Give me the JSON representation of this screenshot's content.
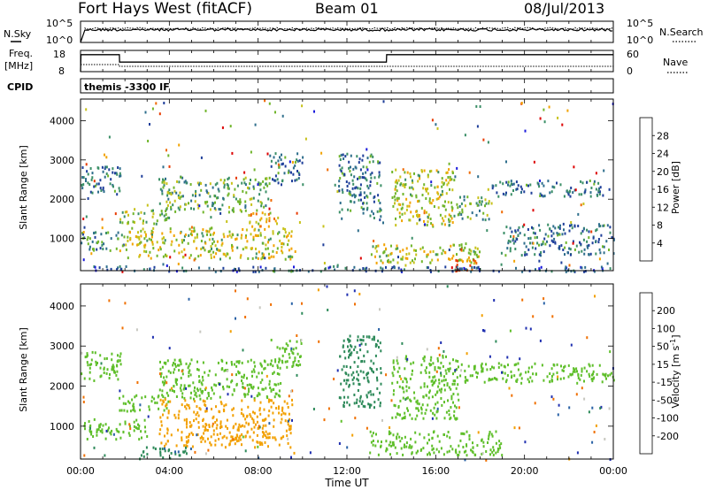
{
  "header": {
    "station": "Fort Hays West (fitACF)",
    "beam": "Beam 01",
    "date": "08/Jul/2013"
  },
  "top_panels": {
    "nsky_label": "N.Sky",
    "nsky_ticks": [
      "10^5",
      "10^0"
    ],
    "nsearch_label": "N.Search",
    "nsearch_ticks": [
      "10^5",
      "10^0"
    ],
    "freq_label": "Freq.",
    "freq_unit": "[MHz]",
    "freq_ticks": [
      "18",
      "8"
    ],
    "nave_label": "Nave",
    "nave_ticks": [
      "60",
      "0"
    ],
    "cpid_label": "CPID",
    "cpid_value": "themis -3300 IF"
  },
  "axes": {
    "xlabel": "Time UT",
    "x_ticks": [
      "00:00",
      "04:00",
      "08:00",
      "12:00",
      "16:00",
      "20:00",
      "00:00"
    ],
    "ylabel": "Slant Range [km]",
    "y_ticks": [
      "1000",
      "2000",
      "3000",
      "4000"
    ]
  },
  "colorbars": {
    "power": {
      "label": "Power [dB]",
      "ticks": [
        "4",
        "8",
        "12",
        "16",
        "20",
        "24",
        "28"
      ],
      "colors": [
        "#1a1adc",
        "#1f3f9a",
        "#2e6e8c",
        "#3b8f67",
        "#70b52b",
        "#c7c21b",
        "#f2a300",
        "#f06a00",
        "#e83a00",
        "#dd0000"
      ]
    },
    "velocity": {
      "label": "Velocity [m s",
      "label_sup": "-1",
      "label_end": "]",
      "ticks": [
        "200",
        "100",
        "50",
        "15",
        "-15",
        "-50",
        "-100",
        "-200"
      ],
      "colors": [
        "#2030b0",
        "#2a62a6",
        "#2e8a5a",
        "#5fbf2a",
        "#c8c8c0",
        "#f2a000",
        "#f07000",
        "#e84000",
        "#dd0000"
      ]
    }
  },
  "chart_data": [
    {
      "type": "line",
      "title": "Fort Hays West (fitACF)",
      "x_range_hours": [
        0,
        24
      ],
      "series": [
        {
          "name": "N.Sky",
          "x": [
            0,
            0.2,
            24
          ],
          "values": [
            1,
            1000,
            1000
          ]
        },
        {
          "name": "N.Search",
          "x": [
            0,
            0.2,
            24
          ],
          "values": [
            1,
            2000,
            2000
          ]
        }
      ]
    },
    {
      "type": "line",
      "x_range_hours": [
        0,
        24
      ],
      "series": [
        {
          "name": "Freq.",
          "x": [
            0,
            0.02,
            1.75,
            1.76,
            13.78,
            13.79,
            24
          ],
          "values": [
            8,
            16,
            16,
            12.5,
            12.5,
            16,
            16
          ]
        },
        {
          "name": "Nave",
          "x": [
            0,
            1.75,
            1.76,
            24
          ],
          "values": [
            20,
            20,
            15,
            15
          ]
        }
      ],
      "ylim_freq": [
        8,
        18
      ],
      "ylim_nave": [
        0,
        60
      ]
    },
    {
      "type": "heatmap",
      "title": "Power [dB]",
      "xlabel": "Time UT",
      "ylabel": "Slant Range [km]",
      "x_range_hours": [
        0,
        24
      ],
      "y_range_km": [
        180,
        4550
      ],
      "value_range": [
        0,
        30
      ],
      "regions": [
        {
          "t": [
            0.0,
            1.8
          ],
          "r": [
            2150,
            2900
          ],
          "value": 8
        },
        {
          "t": [
            1.7,
            4.0
          ],
          "r": [
            1400,
            1800
          ],
          "value": 14
        },
        {
          "t": [
            3.5,
            8.5
          ],
          "r": [
            1700,
            2600
          ],
          "value": 12
        },
        {
          "t": [
            8.5,
            10.0
          ],
          "r": [
            2400,
            3200
          ],
          "value": 8
        },
        {
          "t": [
            0.0,
            2.0
          ],
          "r": [
            700,
            1200
          ],
          "value": 10
        },
        {
          "t": [
            2.0,
            9.5
          ],
          "r": [
            500,
            1300
          ],
          "value": 16
        },
        {
          "t": [
            7.5,
            9.0
          ],
          "r": [
            1300,
            1700
          ],
          "value": 18
        },
        {
          "t": [
            11.6,
            13.5
          ],
          "r": [
            1500,
            3200
          ],
          "value": 8
        },
        {
          "t": [
            13.0,
            18.0
          ],
          "r": [
            400,
            900
          ],
          "value": 16
        },
        {
          "t": [
            16.5,
            17.8
          ],
          "r": [
            200,
            500
          ],
          "value": 24
        },
        {
          "t": [
            14.0,
            16.8
          ],
          "r": [
            1300,
            2800
          ],
          "value": 16
        },
        {
          "t": [
            16.8,
            18.5
          ],
          "r": [
            1500,
            2100
          ],
          "value": 12
        },
        {
          "t": [
            18.5,
            23.5
          ],
          "r": [
            2100,
            2500
          ],
          "value": 8
        },
        {
          "t": [
            19.0,
            24.0
          ],
          "r": [
            600,
            1400
          ],
          "value": 8
        },
        {
          "t": [
            0.5,
            23.5
          ],
          "r": [
            180,
            320
          ],
          "value": 6
        }
      ]
    },
    {
      "type": "heatmap",
      "title": "Velocity [m s-1]",
      "xlabel": "Time UT",
      "ylabel": "Slant Range [km]",
      "x_range_hours": [
        0,
        24
      ],
      "y_range_km": [
        180,
        4550
      ],
      "value_range": [
        -200,
        200
      ],
      "regions": [
        {
          "t": [
            0.0,
            1.8
          ],
          "r": [
            2150,
            2900
          ],
          "value": 0
        },
        {
          "t": [
            1.7,
            4.0
          ],
          "r": [
            1400,
            1800
          ],
          "value": 0
        },
        {
          "t": [
            3.5,
            9.0
          ],
          "r": [
            1700,
            2700
          ],
          "value": 0
        },
        {
          "t": [
            8.5,
            10.0
          ],
          "r": [
            2500,
            3200
          ],
          "value": 0
        },
        {
          "t": [
            0.0,
            3.0
          ],
          "r": [
            700,
            1200
          ],
          "value": 0
        },
        {
          "t": [
            3.5,
            9.5
          ],
          "r": [
            500,
            1700
          ],
          "value": -80
        },
        {
          "t": [
            2.5,
            5.0
          ],
          "r": [
            200,
            500
          ],
          "value": 40
        },
        {
          "t": [
            11.6,
            13.5
          ],
          "r": [
            1500,
            3300
          ],
          "value": 30
        },
        {
          "t": [
            13.0,
            19.0
          ],
          "r": [
            300,
            900
          ],
          "value": 0
        },
        {
          "t": [
            14.0,
            17.0
          ],
          "r": [
            1200,
            2800
          ],
          "value": 0
        },
        {
          "t": [
            17.0,
            24.0
          ],
          "r": [
            2100,
            2600
          ],
          "value": 0
        }
      ]
    }
  ]
}
